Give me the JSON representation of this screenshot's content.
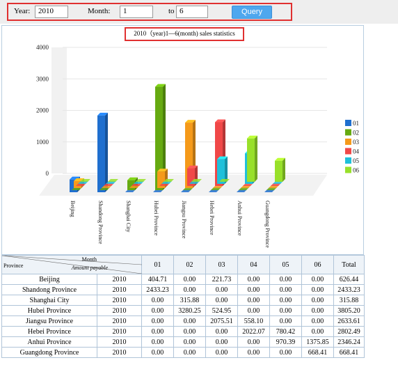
{
  "filters": {
    "year_label": "Year:",
    "year_value": "2010",
    "month_label": "Month:",
    "month_from": "1",
    "to_label": "to",
    "month_to": "6",
    "query_label": "Query"
  },
  "chart_data": {
    "type": "bar",
    "title": "2010（year)1—6(month) sales statistics",
    "categories": [
      "Beijing",
      "Shandong Province",
      "Shanghai City",
      "Hubei Province",
      "Jiangsu Province",
      "Hebei Province",
      "Anhui Province",
      "Guangdong Province"
    ],
    "series": [
      {
        "name": "01",
        "color": "#1f6fcf",
        "values": [
          404.71,
          2433.23,
          0,
          0,
          0,
          0,
          0,
          0
        ]
      },
      {
        "name": "02",
        "color": "#66aa11",
        "values": [
          0,
          0,
          315.88,
          3280.25,
          0,
          0,
          0,
          0
        ]
      },
      {
        "name": "03",
        "color": "#f59a1a",
        "values": [
          221.73,
          0,
          0,
          524.95,
          2075.51,
          0,
          0,
          0
        ]
      },
      {
        "name": "04",
        "color": "#f04848",
        "values": [
          0,
          0,
          0,
          0,
          558.1,
          2022.07,
          0,
          0
        ]
      },
      {
        "name": "05",
        "color": "#1fc0da",
        "values": [
          0,
          0,
          0,
          0,
          0,
          780.42,
          970.39,
          0
        ]
      },
      {
        "name": "06",
        "color": "#98e02a",
        "values": [
          0,
          0,
          0,
          0,
          0,
          0,
          1375.85,
          668.41
        ]
      }
    ],
    "y_ticks": [
      "4000",
      "3000",
      "2000",
      "1000",
      "0"
    ],
    "ylim": [
      0,
      4000
    ],
    "legend": "right",
    "view": "3d"
  },
  "table": {
    "header": {
      "month": "Month",
      "province": "Province",
      "amount": "Amount payable",
      "months": [
        "01",
        "02",
        "03",
        "04",
        "05",
        "06"
      ],
      "total": "Total"
    },
    "rows": [
      {
        "province": "Beijing",
        "year": "2010",
        "m": [
          "404.71",
          "0.00",
          "221.73",
          "0.00",
          "0.00",
          "0.00"
        ],
        "total": "626.44"
      },
      {
        "province": "Shandong Province",
        "year": "2010",
        "m": [
          "2433.23",
          "0.00",
          "0.00",
          "0.00",
          "0.00",
          "0.00"
        ],
        "total": "2433.23"
      },
      {
        "province": "Shanghai City",
        "year": "2010",
        "m": [
          "0.00",
          "315.88",
          "0.00",
          "0.00",
          "0.00",
          "0.00"
        ],
        "total": "315.88"
      },
      {
        "province": "Hubei Province",
        "year": "2010",
        "m": [
          "0.00",
          "3280.25",
          "524.95",
          "0.00",
          "0.00",
          "0.00"
        ],
        "total": "3805.20"
      },
      {
        "province": "Jiangsu Province",
        "year": "2010",
        "m": [
          "0.00",
          "0.00",
          "2075.51",
          "558.10",
          "0.00",
          "0.00"
        ],
        "total": "2633.61"
      },
      {
        "province": "Hebei Province",
        "year": "2010",
        "m": [
          "0.00",
          "0.00",
          "0.00",
          "2022.07",
          "780.42",
          "0.00"
        ],
        "total": "2802.49"
      },
      {
        "province": "Anhui Province",
        "year": "2010",
        "m": [
          "0.00",
          "0.00",
          "0.00",
          "0.00",
          "970.39",
          "1375.85"
        ],
        "total": "2346.24"
      },
      {
        "province": "Guangdong Province",
        "year": "2010",
        "m": [
          "0.00",
          "0.00",
          "0.00",
          "0.00",
          "0.00",
          "668.41"
        ],
        "total": "668.41"
      }
    ]
  }
}
